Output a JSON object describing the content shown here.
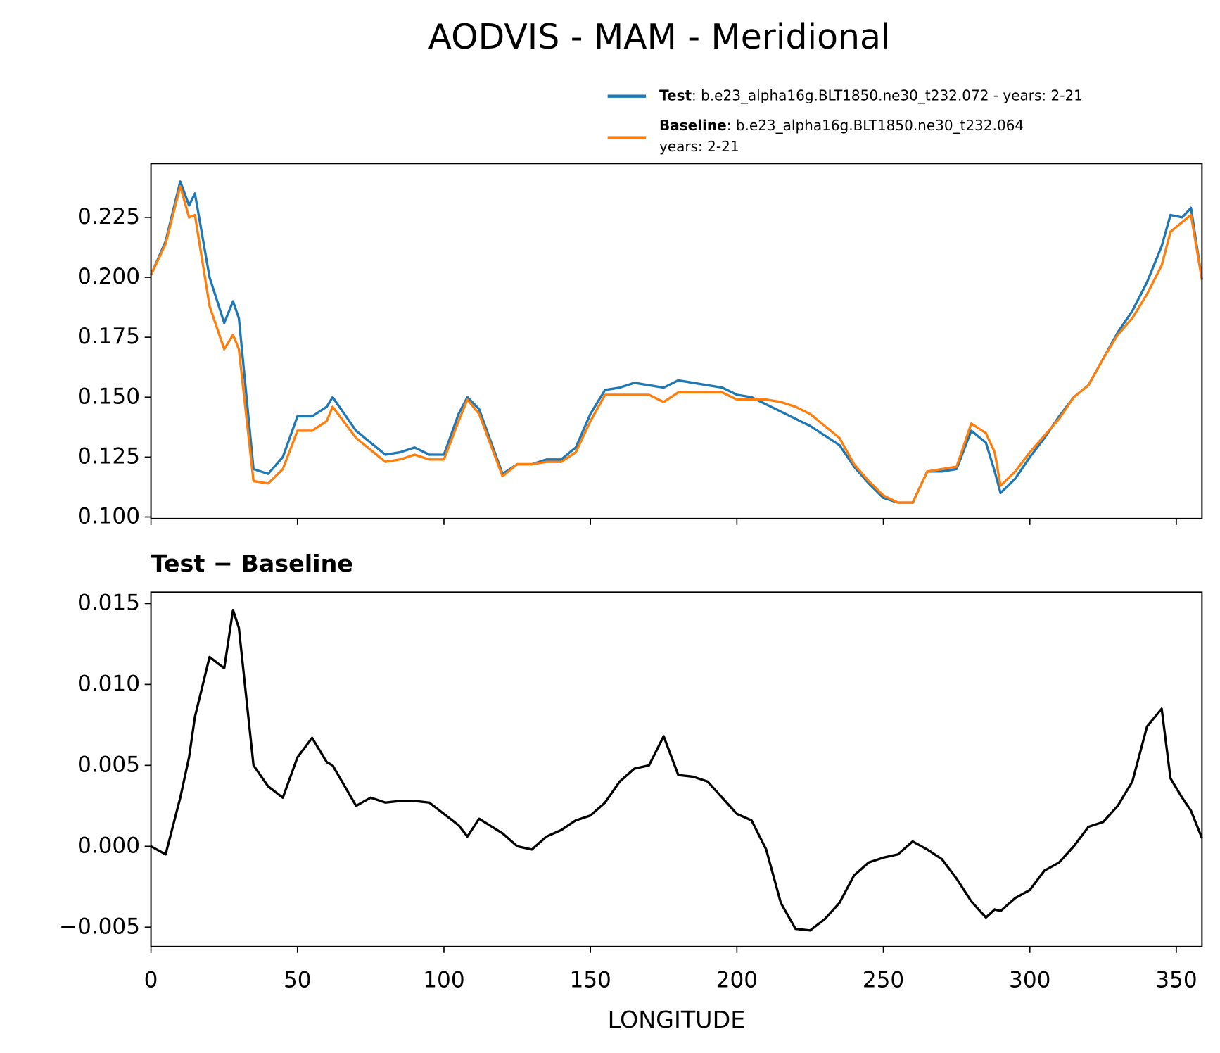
{
  "chart_data": [
    {
      "type": "line",
      "title": "AODVIS - MAM - Meridional",
      "x": [
        0,
        5,
        10,
        13,
        15,
        20,
        25,
        28,
        30,
        35,
        40,
        45,
        50,
        55,
        60,
        62,
        70,
        75,
        80,
        85,
        90,
        95,
        100,
        105,
        108,
        112,
        120,
        125,
        130,
        135,
        140,
        145,
        150,
        155,
        160,
        165,
        170,
        175,
        180,
        185,
        190,
        195,
        200,
        205,
        210,
        215,
        220,
        225,
        230,
        235,
        240,
        245,
        250,
        255,
        260,
        265,
        270,
        275,
        280,
        285,
        288,
        290,
        295,
        300,
        305,
        310,
        315,
        320,
        325,
        330,
        335,
        340,
        345,
        348,
        352,
        355,
        358.75
      ],
      "series": [
        {
          "name": "Test",
          "description": [
            ": b.e23_alpha16g.BLT1850.ne30_t232.072 - years: 2-21"
          ],
          "color": "#1f77b4",
          "values": [
            0.201,
            0.215,
            0.24,
            0.23,
            0.235,
            0.2,
            0.181,
            0.19,
            0.183,
            0.12,
            0.118,
            0.125,
            0.142,
            0.142,
            0.146,
            0.15,
            0.136,
            0.131,
            0.126,
            0.127,
            0.129,
            0.126,
            0.126,
            0.143,
            0.15,
            0.145,
            0.118,
            0.122,
            0.122,
            0.124,
            0.124,
            0.129,
            0.143,
            0.153,
            0.154,
            0.156,
            0.155,
            0.154,
            0.157,
            0.156,
            0.155,
            0.154,
            0.151,
            0.15,
            0.147,
            0.144,
            0.141,
            0.138,
            0.134,
            0.13,
            0.121,
            0.114,
            0.108,
            0.106,
            0.106,
            0.119,
            0.119,
            0.12,
            0.136,
            0.131,
            0.119,
            0.11,
            0.116,
            0.125,
            0.133,
            0.142,
            0.15,
            0.155,
            0.166,
            0.177,
            0.186,
            0.198,
            0.213,
            0.226,
            0.225,
            0.229,
            0.199
          ]
        },
        {
          "name": "Baseline",
          "description": [
            ": b.e23_alpha16g.BLT1850.ne30_t232.064",
            "years: 2-21"
          ],
          "color": "#ff7f0e",
          "values": [
            0.201,
            0.214,
            0.238,
            0.225,
            0.226,
            0.188,
            0.17,
            0.176,
            0.17,
            0.115,
            0.114,
            0.12,
            0.136,
            0.136,
            0.14,
            0.146,
            0.133,
            0.128,
            0.123,
            0.124,
            0.126,
            0.124,
            0.124,
            0.14,
            0.149,
            0.143,
            0.117,
            0.122,
            0.122,
            0.123,
            0.123,
            0.127,
            0.14,
            0.151,
            0.151,
            0.151,
            0.151,
            0.148,
            0.152,
            0.152,
            0.152,
            0.152,
            0.149,
            0.149,
            0.149,
            0.148,
            0.146,
            0.143,
            0.138,
            0.133,
            0.122,
            0.115,
            0.109,
            0.106,
            0.106,
            0.119,
            0.12,
            0.121,
            0.139,
            0.135,
            0.127,
            0.113,
            0.119,
            0.127,
            0.134,
            0.141,
            0.15,
            0.155,
            0.166,
            0.176,
            0.183,
            0.193,
            0.205,
            0.219,
            0.223,
            0.226,
            0.199
          ]
        }
      ],
      "xlim": [
        0,
        358.75
      ],
      "xticks": [
        0,
        50,
        100,
        150,
        200,
        250,
        300,
        350
      ],
      "show_xtick_labels": false,
      "ylim": [
        0.0993,
        0.2475
      ],
      "yticks": [
        {
          "value": 0.1,
          "label": "0.100"
        },
        0.125,
        {
          "value": 0.15,
          "label": "0.150"
        },
        0.175,
        {
          "value": 0.2,
          "label": "0.200"
        },
        0.225
      ]
    },
    {
      "type": "line",
      "title": "Test − Baseline",
      "xlabel": "LONGITUDE",
      "x": [
        0,
        5,
        10,
        13,
        15,
        20,
        25,
        28,
        30,
        35,
        40,
        45,
        50,
        55,
        60,
        62,
        70,
        75,
        80,
        85,
        90,
        95,
        100,
        105,
        108,
        112,
        120,
        125,
        130,
        135,
        140,
        145,
        150,
        155,
        160,
        165,
        170,
        175,
        180,
        185,
        190,
        195,
        200,
        205,
        210,
        215,
        220,
        225,
        230,
        235,
        240,
        245,
        250,
        255,
        260,
        265,
        270,
        275,
        280,
        285,
        288,
        290,
        295,
        300,
        305,
        310,
        315,
        320,
        325,
        330,
        335,
        340,
        345,
        348,
        352,
        355,
        358.75
      ],
      "color": "#000000",
      "values": [
        0.0,
        -0.0005,
        0.003,
        0.0055,
        0.008,
        0.0117,
        0.011,
        0.0146,
        0.0135,
        0.005,
        0.0037,
        0.003,
        0.0055,
        0.0067,
        0.0052,
        0.005,
        0.0025,
        0.003,
        0.0027,
        0.0028,
        0.0028,
        0.0027,
        0.002,
        0.0013,
        0.0006,
        0.0017,
        0.0008,
        0.0,
        -0.0002,
        0.0006,
        0.001,
        0.0016,
        0.0019,
        0.0027,
        0.004,
        0.0048,
        0.005,
        0.0068,
        0.0044,
        0.0043,
        0.004,
        0.003,
        0.002,
        0.0016,
        -0.0002,
        -0.0035,
        -0.0051,
        -0.0052,
        -0.0045,
        -0.0035,
        -0.0018,
        -0.001,
        -0.0007,
        -0.0005,
        0.0003,
        -0.0002,
        -0.0008,
        -0.002,
        -0.0034,
        -0.0044,
        -0.0039,
        -0.004,
        -0.0032,
        -0.0027,
        -0.0015,
        -0.001,
        0.0,
        0.0012,
        0.0015,
        0.0025,
        0.004,
        0.0074,
        0.0085,
        0.0042,
        0.003,
        0.0022,
        0.0005
      ],
      "xlim": [
        0,
        358.75
      ],
      "xticks": [
        0,
        50,
        100,
        150,
        200,
        250,
        300,
        350
      ],
      "show_xtick_labels": true,
      "ylim": [
        -0.0062,
        0.0157
      ],
      "yticks": [
        {
          "value": -0.005,
          "label": "−0.005"
        },
        {
          "value": 0,
          "label": "0.000"
        },
        0.005,
        {
          "value": 0.01,
          "label": "0.010"
        },
        0.015
      ]
    }
  ]
}
